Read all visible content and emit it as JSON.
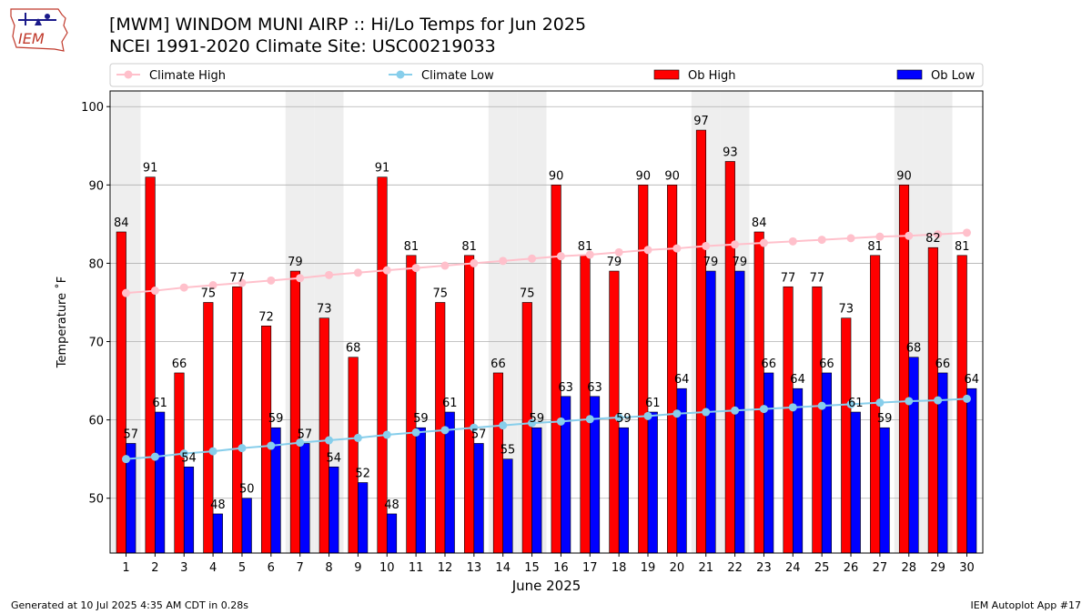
{
  "header": {
    "title_line1": "[MWM] WINDOM MUNI AIRP :: Hi/Lo Temps for Jun 2025",
    "title_line2": "NCEI 1991-2020 Climate Site: USC00219033",
    "logo_text": "IEM"
  },
  "footer": {
    "generated": "Generated at 10 Jul 2025 4:35 AM CDT in 0.28s",
    "app": "IEM Autoplot App #17"
  },
  "colors": {
    "ob_high": "#ff0000",
    "ob_low": "#0000ff",
    "climate_high": "#ffc0cb",
    "climate_low": "#87ceeb",
    "weekend_shade": "#eeeeee",
    "grid": "#b0b0b0"
  },
  "chart_data": {
    "type": "bar",
    "xlabel": "June 2025",
    "ylabel": "Temperature ˚F",
    "ylim": [
      43,
      102
    ],
    "yticks": [
      50,
      60,
      70,
      80,
      90,
      100
    ],
    "grid": true,
    "legend_placement": "top",
    "categories": [
      "1",
      "2",
      "3",
      "4",
      "5",
      "6",
      "7",
      "8",
      "9",
      "10",
      "11",
      "12",
      "13",
      "14",
      "15",
      "16",
      "17",
      "18",
      "19",
      "20",
      "21",
      "22",
      "23",
      "24",
      "25",
      "26",
      "27",
      "28",
      "29",
      "30"
    ],
    "shaded_days": [
      "1",
      "7",
      "8",
      "14",
      "15",
      "21",
      "22",
      "28",
      "29"
    ],
    "series": [
      {
        "name": "Climate High",
        "kind": "line",
        "values": [
          76.2,
          76.5,
          76.9,
          77.2,
          77.5,
          77.8,
          78.1,
          78.5,
          78.8,
          79.1,
          79.4,
          79.7,
          80.0,
          80.3,
          80.6,
          80.9,
          81.1,
          81.4,
          81.7,
          81.9,
          82.2,
          82.4,
          82.6,
          82.8,
          83.0,
          83.2,
          83.4,
          83.5,
          83.7,
          83.9
        ]
      },
      {
        "name": "Climate Low",
        "kind": "line",
        "values": [
          55.0,
          55.3,
          55.7,
          56.0,
          56.4,
          56.7,
          57.1,
          57.4,
          57.7,
          58.1,
          58.4,
          58.7,
          59.0,
          59.3,
          59.6,
          59.8,
          60.1,
          60.3,
          60.5,
          60.8,
          61.0,
          61.2,
          61.4,
          61.6,
          61.8,
          62.0,
          62.2,
          62.4,
          62.5,
          62.7
        ]
      },
      {
        "name": "Ob High",
        "kind": "bar",
        "values": [
          84,
          91,
          66,
          75,
          77,
          72,
          79,
          73,
          68,
          91,
          81,
          75,
          81,
          66,
          75,
          90,
          81,
          79,
          90,
          90,
          97,
          93,
          84,
          77,
          77,
          73,
          81,
          90,
          82,
          81
        ]
      },
      {
        "name": "Ob Low",
        "kind": "bar",
        "values": [
          57,
          61,
          54,
          48,
          50,
          59,
          57,
          54,
          52,
          48,
          59,
          61,
          57,
          55,
          59,
          63,
          63,
          59,
          61,
          64,
          79,
          79,
          66,
          64,
          66,
          61,
          59,
          68,
          66,
          64
        ]
      }
    ]
  }
}
